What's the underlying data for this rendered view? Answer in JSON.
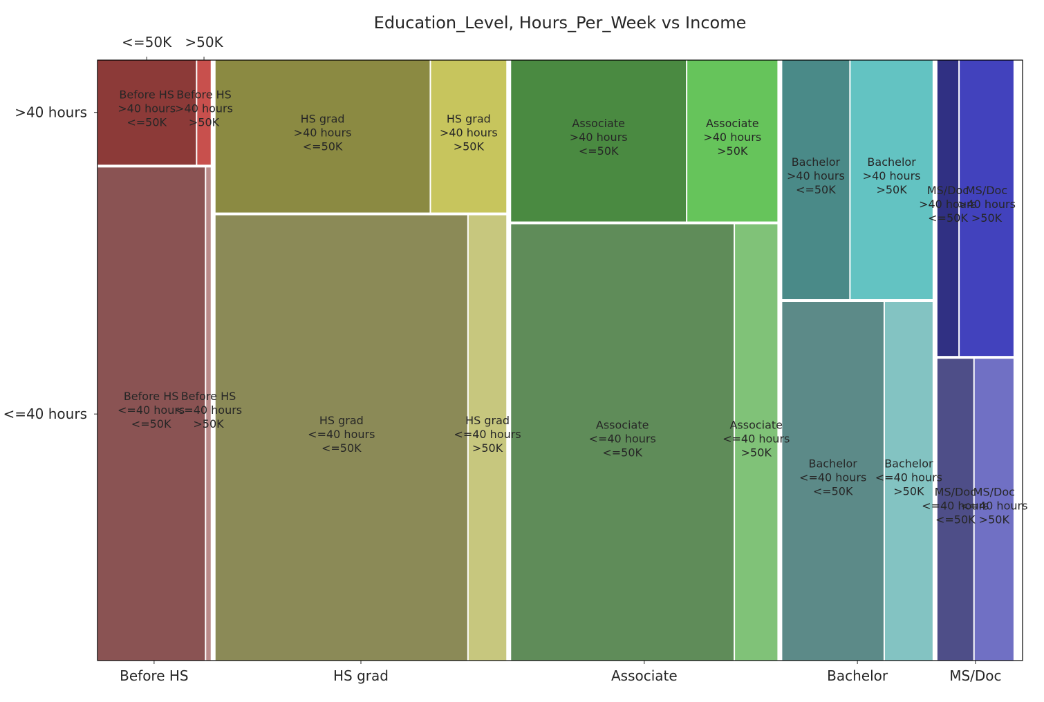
{
  "chart_data": {
    "type": "mosaic",
    "title": "Education_Level, Hours_Per_Week vs Income",
    "xlabel": "",
    "ylabel": "",
    "x_categories": [
      "Before HS",
      "HS grad",
      "Associate",
      "Bachelor",
      "MS/Doc"
    ],
    "y_categories": [
      ">40 hours",
      "<=40 hours"
    ],
    "income_categories": [
      "<=50K",
      ">50K"
    ],
    "education_shares": {
      "Before HS": 0.125,
      "HS grad": 0.321,
      "Associate": 0.294,
      "Bachelor": 0.166,
      "MS/Doc": 0.084
    },
    "hours_shares": {
      "Before HS": {
        ">40 hours": 0.175,
        "<=40 hours": 0.825
      },
      "HS grad": {
        ">40 hours": 0.255,
        "<=40 hours": 0.745
      },
      "Associate": {
        ">40 hours": 0.27,
        "<=40 hours": 0.73
      },
      "Bachelor": {
        ">40 hours": 0.4,
        "<=40 hours": 0.6
      },
      "MS/Doc": {
        ">40 hours": 0.495,
        "<=40 hours": 0.505
      }
    },
    "income_shares_within_hours": {
      "Before HS": {
        ">40 hours": {
          "<=50K": 0.88,
          ">50K": 0.12
        },
        "<=40 hours": {
          "<=50K": 0.96,
          ">50K": 0.04
        }
      },
      "HS grad": {
        ">40 hours": {
          "<=50K": 0.74,
          ">50K": 0.26
        },
        "<=40 hours": {
          "<=50K": 0.87,
          ">50K": 0.13
        }
      },
      "Associate": {
        ">40 hours": {
          "<=50K": 0.66,
          ">50K": 0.34
        },
        "<=40 hours": {
          "<=50K": 0.84,
          ">50K": 0.16
        }
      },
      "Bachelor": {
        ">40 hours": {
          "<=50K": 0.45,
          ">50K": 0.55
        },
        "<=40 hours": {
          "<=50K": 0.68,
          ">50K": 0.32
        }
      },
      "MS/Doc": {
        ">40 hours": {
          "<=50K": 0.28,
          ">50K": 0.72
        },
        "<=40 hours": {
          "<=50K": 0.48,
          ">50K": 0.52
        }
      }
    },
    "colors": {
      "Before HS": {
        ">40 hours|<=50K": "#8c3a38",
        ">40 hours|>50K": "#c8504d",
        "<=40 hours|<=50K": "#8a5353",
        "<=40 hours|>50K": "#b98a89"
      },
      "HS grad": {
        ">40 hours|<=50K": "#8b8a42",
        ">40 hours|>50K": "#c7c55d",
        "<=40 hours|<=50K": "#8b8a57",
        "<=40 hours|>50K": "#c7c77e"
      },
      "Associate": {
        ">40 hours|<=50K": "#4a8a41",
        ">40 hours|>50K": "#66c45b",
        "<=40 hours|<=50K": "#5f8c59",
        "<=40 hours|>50K": "#80c278"
      },
      "Bachelor": {
        ">40 hours|<=50K": "#4a8a88",
        ">40 hours|>50K": "#63c3c2",
        "<=40 hours|<=50K": "#5c8a88",
        "<=40 hours|>50K": "#83c3c2"
      },
      "MS/Doc": {
        ">40 hours|<=50K": "#303083",
        ">40 hours|>50K": "#4242bd",
        "<=40 hours|<=50K": "#4e4e88",
        "<=40 hours|>50K": "#7070c4"
      }
    }
  }
}
